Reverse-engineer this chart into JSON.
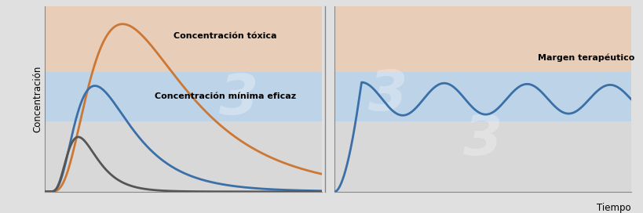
{
  "fig_width": 8.2,
  "fig_height": 2.72,
  "dpi": 100,
  "bg_color": "#e0e0e0",
  "toxic_color": "#e8cdb8",
  "therapeutic_color": "#bdd4e8",
  "subtherapeutic_color": "#d8d8d8",
  "line_blue": "#3a6fa8",
  "line_orange": "#cc7733",
  "line_gray": "#555555",
  "toxic_threshold": 0.68,
  "min_effective_threshold": 0.4,
  "label_toxic": "Concentración tóxica",
  "label_min_eff": "Concentración mínima eficaz",
  "label_margen": "Margen terapéutico",
  "label_tiempo": "Tiempo",
  "label_conc": "Concentración",
  "watermark": "3"
}
